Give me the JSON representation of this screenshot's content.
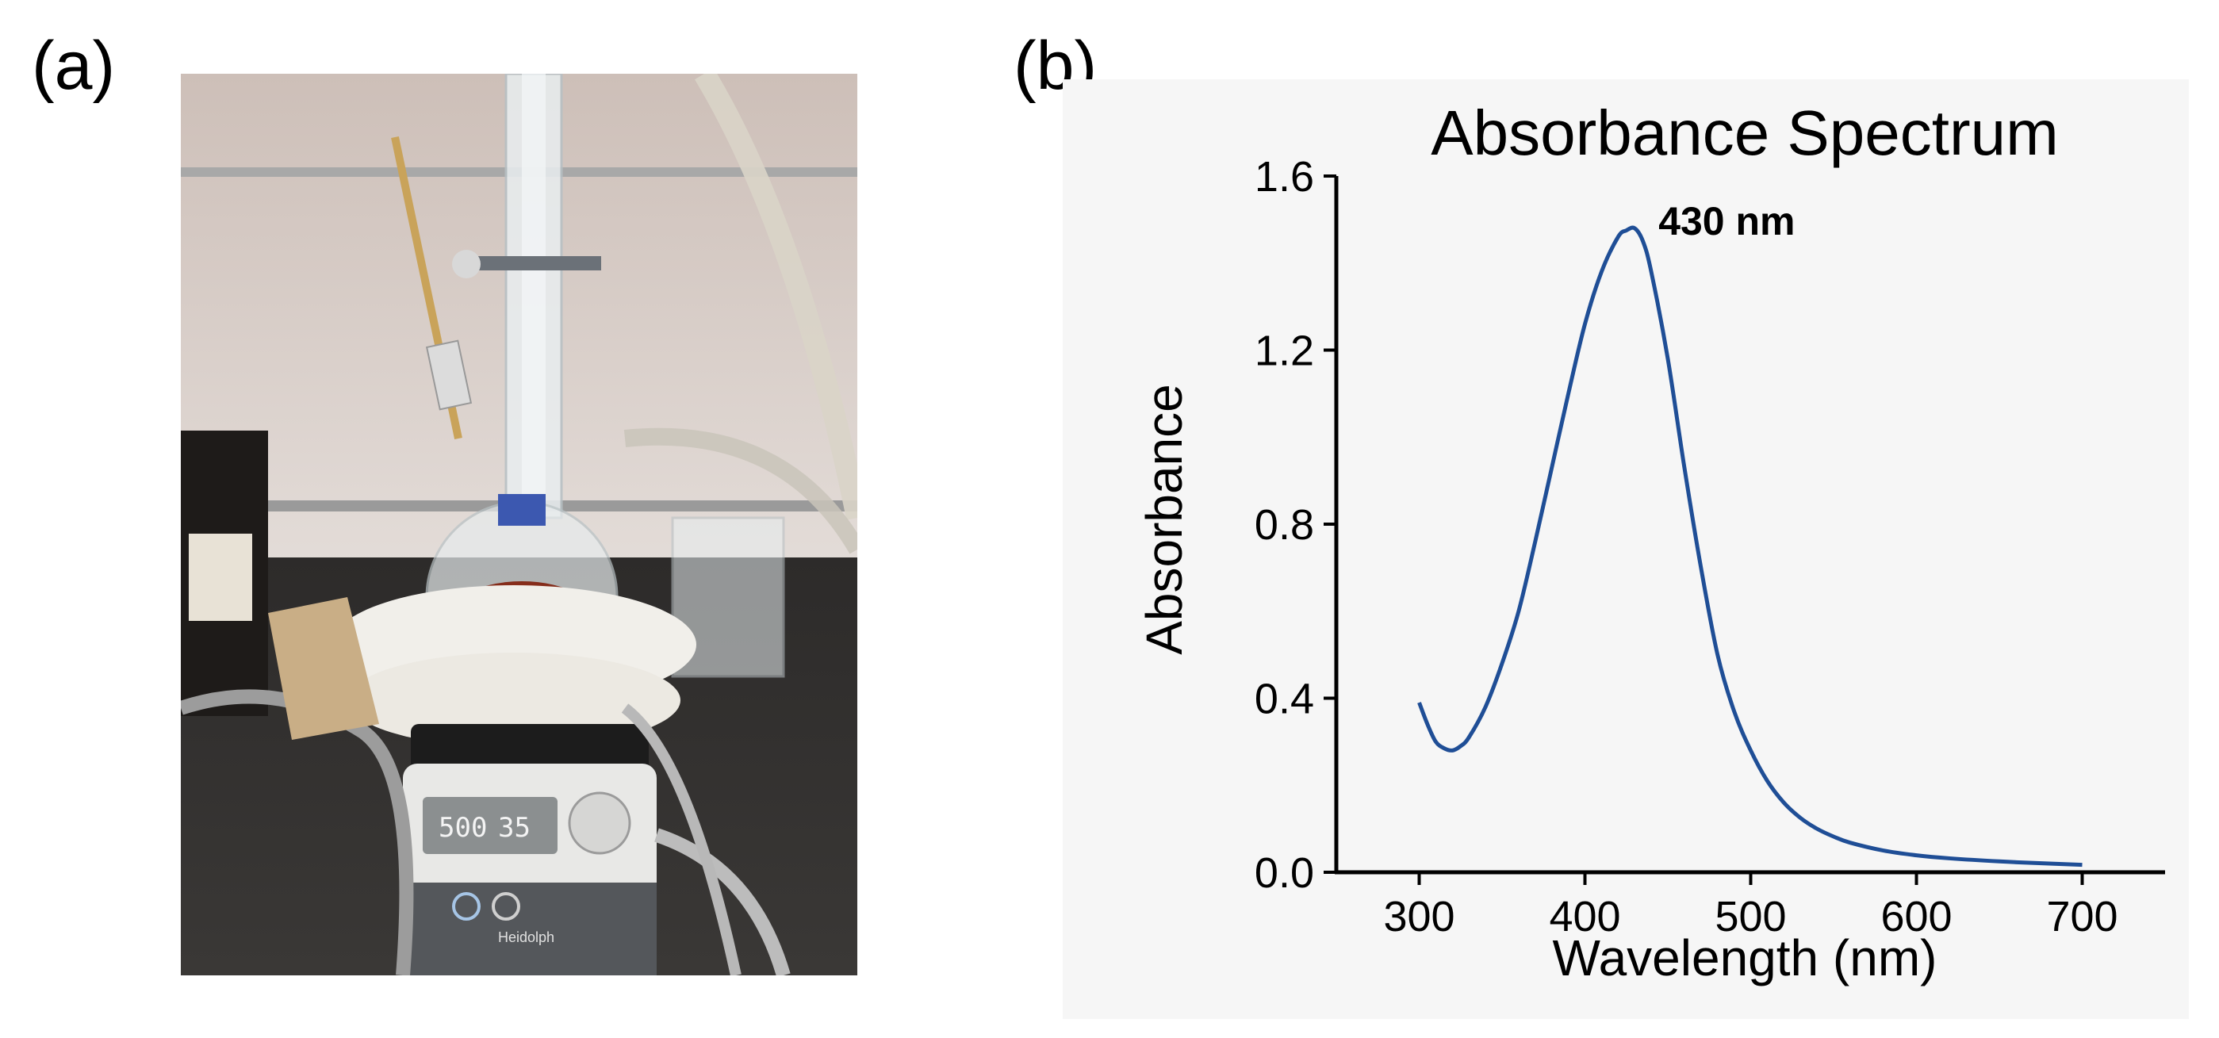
{
  "panels": {
    "a": {
      "label": "(a)"
    },
    "b": {
      "label": "(b)"
    }
  },
  "photo": {
    "display": {
      "left": "500",
      "right": "35"
    },
    "brand": "Heidolph"
  },
  "chart_data": {
    "type": "line",
    "title": "Absorbance Spectrum",
    "xlabel": "Wavelength (nm)",
    "ylabel": "Absorbance",
    "xlim": [
      250,
      750
    ],
    "ylim": [
      0,
      1.6
    ],
    "xticks": [
      300,
      400,
      500,
      600,
      700
    ],
    "xtick_labels": [
      "300",
      "400",
      "500",
      "600",
      "700"
    ],
    "yticks": [
      0.0,
      0.4,
      0.8,
      1.2,
      1.6
    ],
    "ytick_labels": [
      "0.0",
      "0.4",
      "0.8",
      "1.2",
      "1.6"
    ],
    "grid": false,
    "series": [
      {
        "color": "#1f4e96",
        "x": [
          300,
          305,
          310,
          315,
          320,
          325,
          330,
          340,
          350,
          360,
          370,
          380,
          390,
          400,
          410,
          420,
          425,
          430,
          435,
          440,
          450,
          460,
          470,
          480,
          490,
          500,
          510,
          520,
          530,
          540,
          550,
          560,
          580,
          600,
          620,
          650,
          680,
          700
        ],
        "y": [
          0.39,
          0.34,
          0.3,
          0.285,
          0.28,
          0.29,
          0.31,
          0.38,
          0.48,
          0.6,
          0.76,
          0.93,
          1.1,
          1.26,
          1.38,
          1.46,
          1.475,
          1.48,
          1.45,
          1.38,
          1.18,
          0.93,
          0.7,
          0.5,
          0.37,
          0.28,
          0.21,
          0.16,
          0.125,
          0.1,
          0.082,
          0.068,
          0.05,
          0.039,
          0.032,
          0.025,
          0.02,
          0.017
        ]
      }
    ],
    "annotations": [
      {
        "text": "430 nm",
        "x": 430,
        "y": 1.48
      }
    ]
  }
}
